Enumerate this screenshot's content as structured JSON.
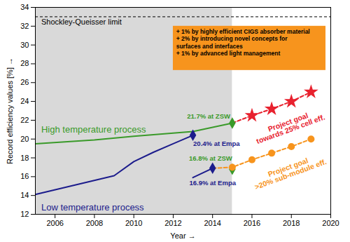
{
  "chart_data": {
    "type": "line",
    "x_label": "Year",
    "y_label": "Record efficiency values [%]",
    "xlim": [
      2005,
      2020
    ],
    "xticks": [
      2006,
      2008,
      2010,
      2012,
      2014,
      2016,
      2018,
      2020
    ],
    "ylim": [
      12,
      34
    ],
    "yticks": [
      12,
      14,
      16,
      18,
      20,
      22,
      24,
      26,
      28,
      30,
      32,
      34
    ],
    "grid": false,
    "series": [
      {
        "name": "High temperature process",
        "color": "#3a9a2a",
        "line_style": "solid",
        "marker": "diamond",
        "x": [
          2005,
          2008,
          2010,
          2013,
          2015
        ],
        "values": [
          19.5,
          19.9,
          20.3,
          20.8,
          21.7
        ]
      },
      {
        "name": "Low temperature process",
        "color": "#1c1c8c",
        "line_style": "solid",
        "marker": "diamond",
        "x": [
          2005,
          2009,
          2010,
          2011,
          2012,
          2013
        ],
        "values": [
          14.1,
          16.1,
          17.6,
          18.6,
          19.5,
          20.4
        ]
      },
      {
        "color": "#1c1c8c",
        "line_style": "solid",
        "marker": "diamond",
        "x": [
          2013,
          2014
        ],
        "values": [
          15.9,
          16.9
        ]
      },
      {
        "color": "#3a9a2a",
        "line_style": "solid",
        "marker": "diamond",
        "x": [
          2015
        ],
        "values": [
          16.8
        ]
      },
      {
        "name": "Project goal\ntowards 25% cell eff.",
        "color": "#e8212e",
        "line_style": "dashed",
        "marker": "star",
        "x": [
          2015,
          2016,
          2017,
          2018,
          2019
        ],
        "values": [
          21.7,
          22.5,
          23.2,
          24.0,
          25.0
        ]
      },
      {
        "name": "Project goal\n>20% sub-module eff.",
        "color": "#f7941d",
        "line_style": "dashed",
        "marker": "circle",
        "x": [
          2014,
          2015,
          2016,
          2017,
          2018,
          2019
        ],
        "values": [
          16.9,
          17.0,
          17.8,
          18.5,
          19.2,
          20.0
        ]
      }
    ],
    "reference_lines": [
      {
        "label": "Shockley-Queisser limit",
        "value": 33,
        "line_style": "dashed"
      }
    ],
    "annotations": [
      {
        "text": "21.7% at ZSW",
        "color": "#3a9a2a"
      },
      {
        "text": "20.4% at Empa",
        "color": "#1c1c8c"
      },
      {
        "text": "16.8% at ZSW",
        "color": "#3a9a2a"
      },
      {
        "text": "16.9% at Empa",
        "color": "#1c1c8c"
      }
    ],
    "box": {
      "color": "#f7941d",
      "text": [
        "+ 1% by highly efficient CIGS absorber material",
        "+ 2% by introducing novel concepts for",
        "surfaces and interfaces",
        "+ 1% by advanced light management"
      ]
    }
  }
}
